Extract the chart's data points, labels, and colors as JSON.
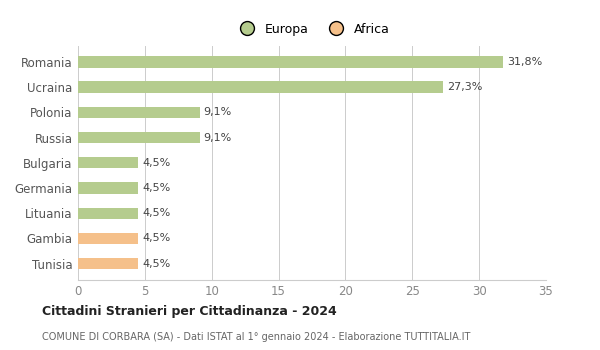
{
  "categories": [
    "Tunisia",
    "Gambia",
    "Lituania",
    "Germania",
    "Bulgaria",
    "Russia",
    "Polonia",
    "Ucraina",
    "Romania"
  ],
  "values": [
    4.5,
    4.5,
    4.5,
    4.5,
    4.5,
    9.1,
    9.1,
    27.3,
    31.8
  ],
  "labels": [
    "4,5%",
    "4,5%",
    "4,5%",
    "4,5%",
    "4,5%",
    "9,1%",
    "9,1%",
    "27,3%",
    "31,8%"
  ],
  "colors": [
    "#f5c08a",
    "#f5c08a",
    "#b5cc8e",
    "#b5cc8e",
    "#b5cc8e",
    "#b5cc8e",
    "#b5cc8e",
    "#b5cc8e",
    "#b5cc8e"
  ],
  "legend_labels": [
    "Europa",
    "Africa"
  ],
  "legend_colors": [
    "#b5cc8e",
    "#f5c08a"
  ],
  "title": "Cittadini Stranieri per Cittadinanza - 2024",
  "subtitle": "COMUNE DI CORBARA (SA) - Dati ISTAT al 1° gennaio 2024 - Elaborazione TUTTITALIA.IT",
  "xlim": [
    0,
    35
  ],
  "xticks": [
    0,
    5,
    10,
    15,
    20,
    25,
    30,
    35
  ],
  "background_color": "#ffffff",
  "grid_color": "#cccccc",
  "bar_height": 0.45
}
